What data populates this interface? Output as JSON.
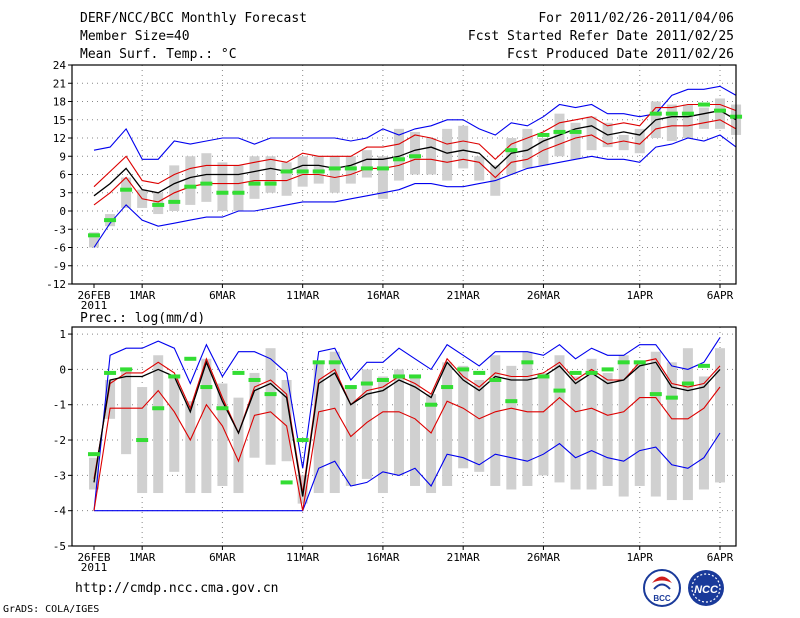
{
  "header": {
    "title": "DERF/NCC/BCC Monthly Forecast",
    "member_size": "Member Size=40",
    "variable": "Mean Surf. Temp.: °C",
    "period": "For 2011/02/26-2011/04/06",
    "refer_date": "Fcst Started Refer Date 2011/02/25",
    "produced_date": "Fcst Produced Date 2011/02/26"
  },
  "footer": {
    "url": "http://cmdp.ncc.cma.gov.cn",
    "credit": "GrADS: COLA/IGES",
    "logo_left": "BCC",
    "logo_right": "NCC"
  },
  "colors": {
    "box": "#d0d0d0",
    "obs": "#33dd33",
    "envelope": "#0000ee",
    "spread": "#dd0000",
    "mean": "#000000",
    "grid": "#888888"
  },
  "chart_data": [
    {
      "type": "box",
      "title": "Mean Surf. Temp.: °C",
      "ylim": [
        -12,
        24
      ],
      "yticks": [
        -12,
        -9,
        -6,
        -3,
        0,
        3,
        6,
        9,
        12,
        15,
        18,
        21,
        24
      ],
      "x_day_start": 0,
      "x_day_end": 39,
      "xticks": [
        {
          "day": 0,
          "label": "26FEB"
        },
        {
          "day": 3,
          "label": "1MAR"
        },
        {
          "day": 8,
          "label": "6MAR"
        },
        {
          "day": 13,
          "label": "11MAR"
        },
        {
          "day": 18,
          "label": "16MAR"
        },
        {
          "day": 23,
          "label": "21MAR"
        },
        {
          "day": 28,
          "label": "26MAR"
        },
        {
          "day": 34,
          "label": "1APR"
        },
        {
          "day": 39,
          "label": "6APR"
        }
      ],
      "year_label": "2011",
      "series": [
        {
          "name": "max",
          "values": [
            10,
            10.5,
            13.5,
            8.5,
            8.5,
            11.5,
            11,
            11.5,
            12,
            12,
            11,
            12,
            12,
            12,
            12,
            12,
            11.5,
            12,
            13.5,
            12.5,
            13.5,
            14,
            15,
            15,
            13.5,
            12.5,
            14.5,
            14,
            15.5,
            17.5,
            17,
            17.5,
            16,
            16,
            15.5,
            16,
            19,
            20,
            20,
            20.5,
            19
          ]
        },
        {
          "name": "upper",
          "values": [
            4,
            6.5,
            9,
            5,
            4.5,
            6,
            7,
            7.5,
            7.5,
            7.5,
            8,
            8.5,
            8,
            9.5,
            9,
            9,
            9,
            10.5,
            10.5,
            11,
            12.5,
            12,
            11,
            11.5,
            11,
            8.5,
            11,
            12,
            13,
            14.5,
            15,
            15.5,
            14,
            14.5,
            14,
            17,
            17,
            17.5,
            17.5,
            17.5,
            16.5
          ]
        },
        {
          "name": "mean",
          "values": [
            2.5,
            4.5,
            7,
            3.5,
            3,
            4.5,
            5.5,
            6,
            6,
            6,
            6.5,
            7,
            6.5,
            7.5,
            7.5,
            7,
            7.5,
            8.5,
            8.5,
            9,
            10,
            10.5,
            9.5,
            10,
            9.5,
            7,
            9.5,
            10,
            11.5,
            12.5,
            13.5,
            14,
            12.5,
            13,
            12.5,
            15,
            15.5,
            15.5,
            16,
            16.5,
            15
          ]
        },
        {
          "name": "lower",
          "values": [
            1,
            3,
            5.5,
            2,
            1.5,
            3,
            4,
            4.5,
            4.5,
            4.5,
            5,
            5,
            5,
            6,
            6,
            5.5,
            6,
            7,
            7,
            7.5,
            8.5,
            8.5,
            8,
            8.5,
            8,
            5.5,
            8,
            8.5,
            10,
            11,
            12,
            12.5,
            11,
            11.5,
            11,
            13.5,
            14,
            14,
            14.5,
            15,
            13.5
          ]
        },
        {
          "name": "min",
          "values": [
            -6,
            -2,
            1,
            -1.5,
            -2.5,
            -2,
            -1.5,
            -1,
            -1,
            0,
            0,
            0.5,
            1,
            1.5,
            1.5,
            1.5,
            2,
            2.5,
            3,
            3.5,
            4.5,
            4.5,
            4,
            4,
            4.5,
            5,
            6,
            7,
            7.5,
            8,
            8.5,
            9,
            8.5,
            8.5,
            8,
            10.5,
            11,
            12,
            11.5,
            12.5,
            10.5
          ]
        },
        {
          "name": "box_high",
          "values": [
            -3.5,
            -0.5,
            5.5,
            3.5,
            3,
            7.5,
            9,
            9.5,
            8,
            7.5,
            9,
            9,
            8,
            9,
            9,
            9,
            9,
            10,
            9,
            13.5,
            13,
            12,
            13.5,
            14,
            9,
            7.5,
            12,
            13.5,
            12,
            16,
            14.5,
            15.5,
            14.5,
            12.5,
            13.5,
            18,
            17.5,
            17.5,
            17,
            18.5,
            17.5
          ]
        },
        {
          "name": "box_low",
          "values": [
            -6,
            -2.5,
            0.5,
            0.5,
            -0.5,
            0,
            1,
            1.5,
            0,
            0,
            2,
            3,
            2.5,
            4,
            4.5,
            3,
            4.5,
            5.5,
            2,
            5,
            6,
            6,
            5,
            7,
            5,
            2.5,
            6,
            7,
            7.5,
            9,
            8.5,
            10,
            10.5,
            10,
            9.5,
            12,
            11.5,
            12,
            13.5,
            13.5,
            12.5
          ]
        },
        {
          "name": "observed",
          "values": [
            -4,
            -1.5,
            3.5,
            null,
            1,
            1.5,
            4,
            4.5,
            3,
            3,
            4.5,
            4.5,
            6.5,
            6.5,
            6.5,
            7,
            7,
            7,
            7,
            8.5,
            9,
            null,
            null,
            null,
            null,
            null,
            10,
            null,
            12.5,
            13,
            13,
            null,
            null,
            null,
            null,
            16,
            16,
            16,
            17.5,
            16.5,
            15.5
          ]
        }
      ]
    },
    {
      "type": "box",
      "title": "Prec.: log(mm/d)",
      "ylim": [
        -5,
        1.2
      ],
      "yticks": [
        -5,
        -4,
        -3,
        -2,
        -1,
        0,
        1
      ],
      "x_day_start": 0,
      "x_day_end": 39,
      "xticks": [
        {
          "day": 0,
          "label": "26FEB"
        },
        {
          "day": 3,
          "label": "1MAR"
        },
        {
          "day": 8,
          "label": "6MAR"
        },
        {
          "day": 13,
          "label": "11MAR"
        },
        {
          "day": 18,
          "label": "16MAR"
        },
        {
          "day": 23,
          "label": "21MAR"
        },
        {
          "day": 28,
          "label": "26MAR"
        },
        {
          "day": 34,
          "label": "1APR"
        },
        {
          "day": 39,
          "label": "6APR"
        }
      ],
      "year_label": "2011",
      "series": [
        {
          "name": "max",
          "values": [
            -4,
            0.4,
            0.6,
            0.6,
            0.8,
            0.6,
            -0.4,
            0.7,
            -0.2,
            0.5,
            0.5,
            0.3,
            -0.1,
            -2.8,
            0.5,
            0.6,
            -0.3,
            0.2,
            0.2,
            0.6,
            0.3,
            0,
            0.7,
            0.4,
            0.1,
            0.5,
            0.5,
            0.5,
            0.4,
            0.7,
            0.3,
            0.6,
            0.4,
            0.4,
            0.7,
            0.7,
            0.1,
            0,
            0.2,
            0.9
          ]
        },
        {
          "name": "upper",
          "values": [
            -3.1,
            -0.4,
            -0.1,
            -0.1,
            0.2,
            -0.1,
            -1.1,
            0.3,
            -0.8,
            -1.8,
            -0.5,
            -0.3,
            -0.7,
            -3.5,
            -0.3,
            0,
            -1,
            -0.6,
            -0.5,
            -0.2,
            -0.4,
            -0.7,
            0.3,
            -0.2,
            -0.5,
            -0.1,
            -0.2,
            -0.2,
            -0.1,
            0.2,
            -0.3,
            0,
            -0.3,
            -0.3,
            0.2,
            0.3,
            -0.4,
            -0.5,
            -0.4,
            0.1
          ]
        },
        {
          "name": "mean",
          "values": [
            -3.2,
            -0.3,
            -0.2,
            -0.2,
            0,
            -0.2,
            -1.2,
            0.2,
            -0.9,
            -1.8,
            -0.6,
            -0.4,
            -0.8,
            -3.6,
            -0.4,
            -0.1,
            -1,
            -0.7,
            -0.6,
            -0.3,
            -0.5,
            -0.8,
            0.2,
            -0.3,
            -0.6,
            -0.2,
            -0.3,
            -0.3,
            -0.2,
            0.1,
            -0.4,
            -0.1,
            -0.4,
            -0.3,
            0.1,
            0.2,
            -0.5,
            -0.6,
            -0.5,
            0
          ]
        },
        {
          "name": "lower",
          "values": [
            -4,
            -1.1,
            -1.1,
            -1.1,
            -0.6,
            -1.2,
            -2,
            -1,
            -1.6,
            -2.6,
            -1.3,
            -1.2,
            -1.6,
            -4,
            -1.2,
            -1.1,
            -1.9,
            -1.5,
            -1.2,
            -1.2,
            -1.4,
            -1.8,
            -0.9,
            -1.1,
            -1.4,
            -1.2,
            -1.1,
            -1.2,
            -1.2,
            -0.8,
            -1.2,
            -1.1,
            -1.3,
            -1.2,
            -0.8,
            -0.8,
            -1.4,
            -1.4,
            -1.1,
            -0.5
          ]
        },
        {
          "name": "min",
          "values": [
            -4,
            -4,
            -4,
            -4,
            -4,
            -4,
            -4,
            -4,
            -4,
            -4,
            -4,
            -4,
            -4,
            -4,
            -2.8,
            -2.6,
            -3.3,
            -3.2,
            -2.9,
            -3,
            -2.8,
            -3.3,
            -2.4,
            -2.5,
            -2.7,
            -2.4,
            -2.5,
            -2.6,
            -2.4,
            -2.1,
            -2.5,
            -2.3,
            -2.5,
            -2.6,
            -2.3,
            -2.2,
            -2.7,
            -2.8,
            -2.5,
            -1.8
          ]
        },
        {
          "name": "box_high",
          "values": [
            -2.5,
            -0.3,
            0,
            -0.5,
            0.4,
            -0.2,
            -0.9,
            0.3,
            -0.4,
            -0.8,
            -0.1,
            0.6,
            -0.3,
            -3,
            0.2,
            0.5,
            -0.5,
            0,
            -0.2,
            0,
            -0.2,
            -0.7,
            0.2,
            0.1,
            -0.3,
            0.4,
            0.1,
            0.5,
            -0.1,
            0.4,
            -0.2,
            0.3,
            -0.1,
            0.4,
            0.2,
            0.5,
            0.2,
            0.6,
            -0.2,
            0.6
          ]
        },
        {
          "name": "box_low",
          "values": [
            -3.4,
            -1.4,
            -2.4,
            -3.5,
            -3.5,
            -2.9,
            -3.5,
            -3.5,
            -3.3,
            -3.5,
            -2.5,
            -2.7,
            -2.6,
            -3.8,
            -3.5,
            -3.5,
            -3.3,
            -3.1,
            -3.5,
            -3,
            -3.3,
            -3.5,
            -3.3,
            -2.8,
            -2.9,
            -3.3,
            -3.4,
            -3.3,
            -3,
            -3.2,
            -3.4,
            -3.4,
            -3.3,
            -3.6,
            -3.3,
            -3.6,
            -3.7,
            -3.7,
            -3.4,
            -3.2
          ]
        },
        {
          "name": "observed",
          "values": [
            -2.4,
            -0.1,
            0,
            -2,
            -1.1,
            -0.2,
            0.3,
            -0.5,
            -1.1,
            -0.1,
            -0.3,
            -0.7,
            -3.2,
            -2,
            0.2,
            0.2,
            -0.5,
            -0.4,
            -0.3,
            -0.2,
            -0.2,
            -1,
            -0.5,
            0,
            -0.1,
            -0.3,
            -0.9,
            0.2,
            -0.2,
            -0.6,
            -0.1,
            -0.1,
            0,
            0.2,
            0.2,
            -0.7,
            -0.8,
            -0.4,
            0.1,
            null
          ]
        }
      ]
    }
  ]
}
